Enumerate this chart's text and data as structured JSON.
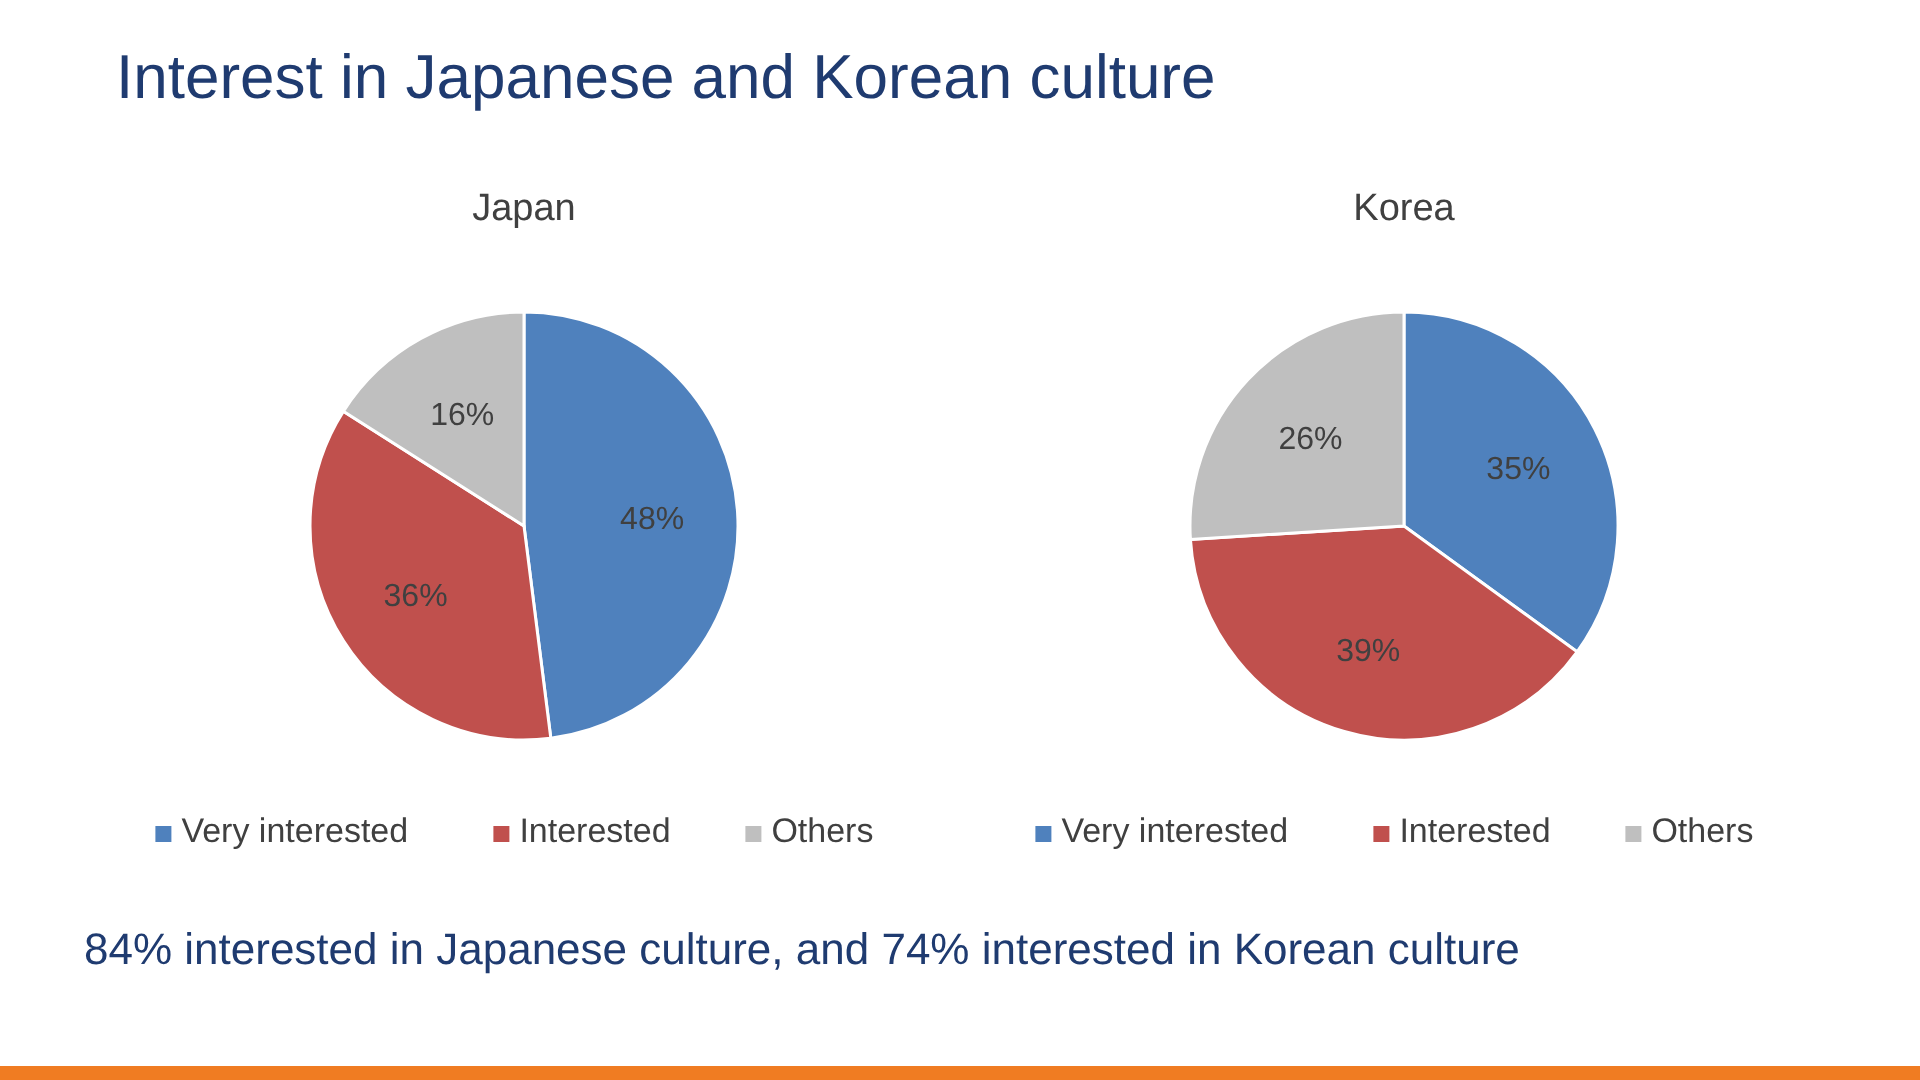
{
  "chart_data": [
    {
      "type": "other",
      "title": "Interest in Japanese and Korean culture",
      "annotations": [
        "84% interested in Japanese culture, and 74% interested in Korean culture"
      ]
    },
    {
      "type": "pie",
      "title": "Japan",
      "categories": [
        "Very interested",
        "Interested",
        "Others"
      ],
      "values": [
        48,
        36,
        16
      ],
      "value_labels": [
        "48%",
        "36%",
        "16%"
      ],
      "colors": [
        "#4f81bd",
        "#c0504d",
        "#bfbfbf"
      ],
      "legend": "bottom"
    },
    {
      "type": "pie",
      "title": "Korea",
      "categories": [
        "Very interested",
        "Interested",
        "Others"
      ],
      "values": [
        35,
        39,
        26
      ],
      "value_labels": [
        "35%",
        "39%",
        "26%"
      ],
      "colors": [
        "#4f81bd",
        "#c0504d",
        "#bfbfbf"
      ],
      "legend": "bottom"
    }
  ]
}
